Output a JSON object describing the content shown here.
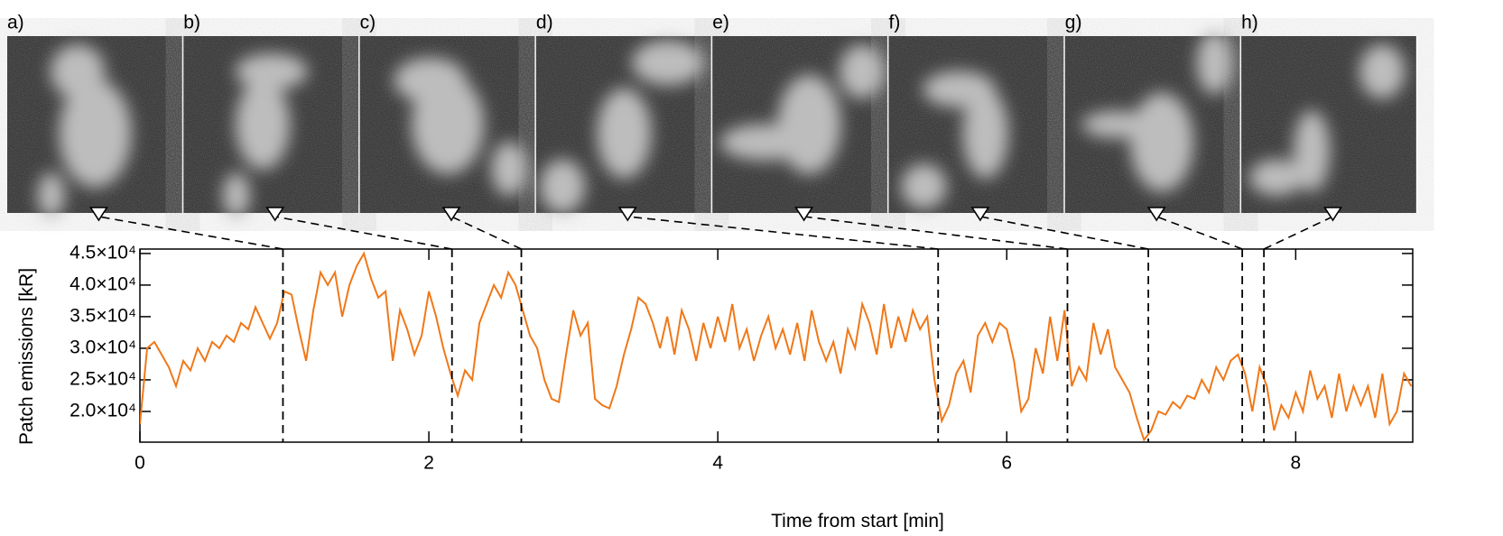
{
  "chart_data": {
    "type": "line",
    "xlabel": "Time from start [min]",
    "ylabel": "Patch emissions [kR]",
    "xlim": [
      0,
      8.81
    ],
    "ylim": [
      15140,
      45700
    ],
    "xticks": [
      0,
      2,
      4,
      6,
      8
    ],
    "yticks": [
      {
        "value": 20000,
        "label": "2.0×10⁴"
      },
      {
        "value": 25000,
        "label": "2.5×10⁴"
      },
      {
        "value": 30000,
        "label": "3.0×10⁴"
      },
      {
        "value": 35000,
        "label": "3.5×10⁴"
      },
      {
        "value": 40000,
        "label": "4.0×10⁴"
      },
      {
        "value": 45000,
        "label": "4.5×10⁴"
      }
    ],
    "panels": [
      {
        "label": "a)",
        "x": 0.99
      },
      {
        "label": "b)",
        "x": 2.16
      },
      {
        "label": "c)",
        "x": 2.64
      },
      {
        "label": "d)",
        "x": 5.525
      },
      {
        "label": "e)",
        "x": 6.42
      },
      {
        "label": "f)",
        "x": 6.98
      },
      {
        "label": "g)",
        "x": 7.63
      },
      {
        "label": "h)",
        "x": 7.78
      }
    ],
    "x": [
      0,
      0.05,
      0.1,
      0.15,
      0.2,
      0.25,
      0.3,
      0.35,
      0.4,
      0.45,
      0.5,
      0.55,
      0.6,
      0.65,
      0.7,
      0.75,
      0.8,
      0.85,
      0.9,
      0.95,
      1.0,
      1.05,
      1.1,
      1.15,
      1.2,
      1.25,
      1.3,
      1.35,
      1.4,
      1.45,
      1.5,
      1.55,
      1.6,
      1.65,
      1.7,
      1.75,
      1.8,
      1.85,
      1.9,
      1.95,
      2.0,
      2.05,
      2.1,
      2.15,
      2.2,
      2.25,
      2.3,
      2.35,
      2.4,
      2.45,
      2.5,
      2.55,
      2.6,
      2.65,
      2.7,
      2.75,
      2.8,
      2.85,
      2.9,
      2.95,
      3.0,
      3.05,
      3.1,
      3.15,
      3.2,
      3.25,
      3.3,
      3.35,
      3.4,
      3.45,
      3.5,
      3.55,
      3.6,
      3.65,
      3.7,
      3.75,
      3.8,
      3.85,
      3.9,
      3.95,
      4.0,
      4.05,
      4.1,
      4.15,
      4.2,
      4.25,
      4.3,
      4.35,
      4.4,
      4.45,
      4.5,
      4.55,
      4.6,
      4.65,
      4.7,
      4.75,
      4.8,
      4.85,
      4.9,
      4.95,
      5.0,
      5.05,
      5.1,
      5.15,
      5.2,
      5.25,
      5.3,
      5.35,
      5.4,
      5.45,
      5.5,
      5.55,
      5.6,
      5.65,
      5.7,
      5.75,
      5.8,
      5.85,
      5.9,
      5.95,
      6.0,
      6.05,
      6.1,
      6.15,
      6.2,
      6.25,
      6.3,
      6.35,
      6.4,
      6.45,
      6.5,
      6.55,
      6.6,
      6.65,
      6.7,
      6.75,
      6.8,
      6.85,
      6.9,
      6.95,
      7.0,
      7.05,
      7.1,
      7.15,
      7.2,
      7.25,
      7.3,
      7.35,
      7.4,
      7.45,
      7.5,
      7.55,
      7.6,
      7.65,
      7.7,
      7.75,
      7.8,
      7.85,
      7.9,
      7.95,
      8.0,
      8.05,
      8.1,
      8.15,
      8.2,
      8.25,
      8.3,
      8.35,
      8.4,
      8.45,
      8.5,
      8.55,
      8.6,
      8.65,
      8.7,
      8.75,
      8.8
    ],
    "series": [
      {
        "color": "#f07818",
        "values": [
          18000,
          30000,
          31000,
          29000,
          27000,
          24000,
          28000,
          26500,
          30000,
          28000,
          31000,
          30000,
          32000,
          31000,
          34000,
          33000,
          36500,
          34000,
          31500,
          34000,
          39000,
          38500,
          33000,
          28000,
          36000,
          42000,
          40000,
          42000,
          35000,
          40000,
          43000,
          45000,
          41000,
          38000,
          39000,
          28000,
          36000,
          33000,
          29000,
          32000,
          39000,
          35000,
          30000,
          26000,
          22500,
          26500,
          25000,
          34000,
          37000,
          40000,
          38000,
          42000,
          40000,
          36000,
          32000,
          30000,
          25000,
          22000,
          21500,
          29000,
          36000,
          32000,
          34000,
          22000,
          21000,
          20500,
          24000,
          29000,
          33000,
          38000,
          37000,
          34000,
          30000,
          35000,
          29000,
          36000,
          33000,
          28000,
          34000,
          30000,
          35000,
          31000,
          37000,
          30000,
          33000,
          28000,
          32000,
          35000,
          30000,
          33000,
          29000,
          34000,
          28000,
          36000,
          31000,
          28000,
          31000,
          26000,
          33000,
          30000,
          37000,
          34000,
          29000,
          37000,
          30000,
          35000,
          31000,
          36000,
          33000,
          35000,
          25000,
          18500,
          21000,
          26000,
          28000,
          23000,
          32000,
          34000,
          31000,
          34000,
          33000,
          28000,
          20000,
          22000,
          30000,
          26000,
          35000,
          28000,
          36000,
          24000,
          27000,
          25000,
          34000,
          29000,
          33000,
          27000,
          25000,
          23000,
          19000,
          15500,
          17000,
          20000,
          19500,
          21500,
          20500,
          22500,
          22000,
          25000,
          23000,
          27000,
          25000,
          28000,
          29000,
          26000,
          20000,
          27000,
          24000,
          17000,
          21000,
          19000,
          23000,
          20000,
          26500,
          22000,
          24000,
          19000,
          26000,
          20000,
          24000,
          21000,
          24000,
          19000,
          26000,
          18000,
          20000,
          26000,
          24000
        ]
      }
    ]
  }
}
